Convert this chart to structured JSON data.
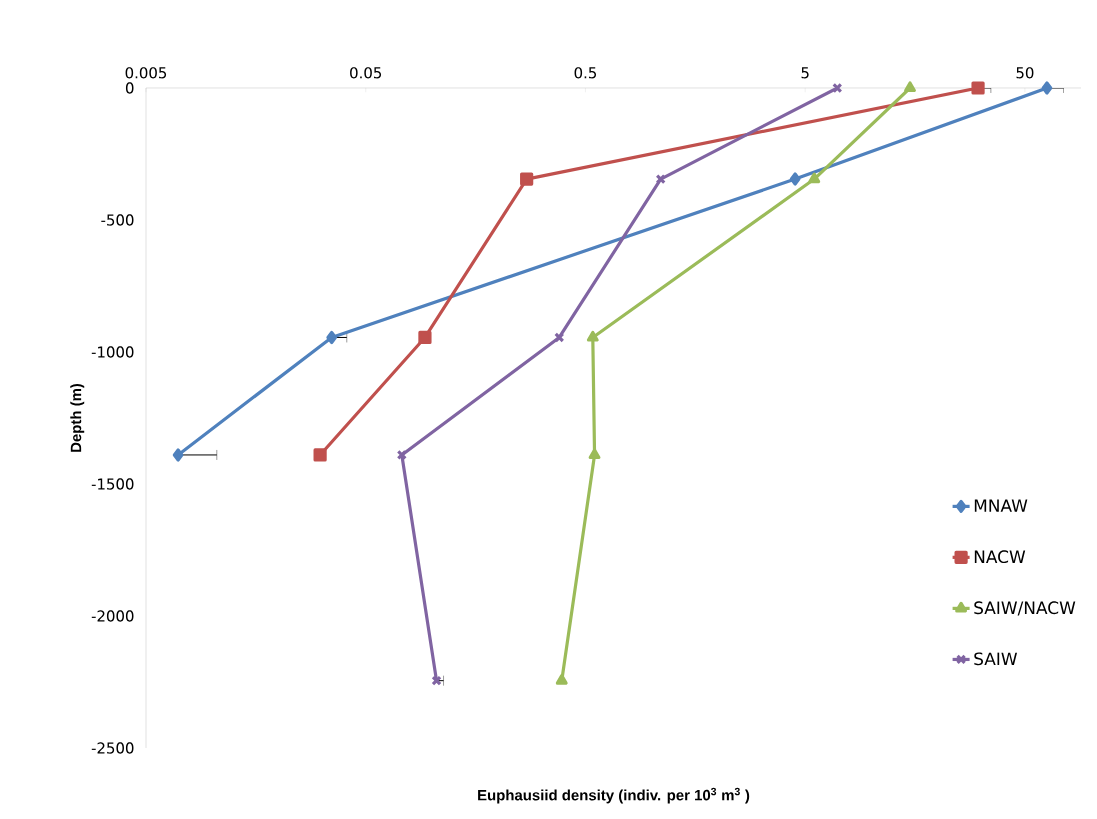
{
  "chart_data": {
    "type": "line",
    "xlabel": "Euphausiid density (indiv. per 10$^{3}$ m$^{3}$ )",
    "ylabel": "Depth (m)",
    "log": "x",
    "xlim": [
      0.005,
      90
    ],
    "ylim": [
      -2500,
      0
    ],
    "xticks": [
      0.005,
      0.05,
      0.5,
      5,
      50
    ],
    "yticks": [
      -2500,
      -2000,
      -1500,
      -1000,
      -500,
      0
    ],
    "grid": false,
    "legend": "right",
    "line_style": "solid",
    "series": [
      {
        "name": "MNAW",
        "color": "#4f81bd",
        "marker": "diamond",
        "x": [
          63,
          4.5,
          0.035,
          0.007
        ],
        "values": [
          0,
          -345,
          -945,
          -1390
        ],
        "xerrors": [
          [
            63,
            75
          ],
          null,
          [
            0.035,
            0.041
          ],
          [
            0.007,
            0.0105
          ]
        ]
      },
      {
        "name": "NACW",
        "color": "#c0504d",
        "marker": "square",
        "x": [
          30.6,
          0.27,
          0.093,
          0.031
        ],
        "values": [
          0,
          -345,
          -945,
          -1390
        ],
        "xerrors": [
          [
            30.6,
            35
          ],
          null,
          null,
          null
        ]
      },
      {
        "name": "SAIW/NACW",
        "color": "#9bbb59",
        "marker": "triangle",
        "x": [
          15,
          5.5,
          0.54,
          0.55,
          0.39
        ],
        "values": [
          0,
          -345,
          -945,
          -1390,
          -2245
        ]
      },
      {
        "name": "SAIW",
        "color": "#8064a2",
        "marker": "cross",
        "x": [
          7.0,
          1.1,
          0.38,
          0.073,
          0.105
        ],
        "values": [
          0,
          -345,
          -945,
          -1390,
          -2245
        ],
        "xerrors": [
          null,
          null,
          null,
          null,
          [
            0.105,
            0.113
          ]
        ]
      }
    ]
  }
}
